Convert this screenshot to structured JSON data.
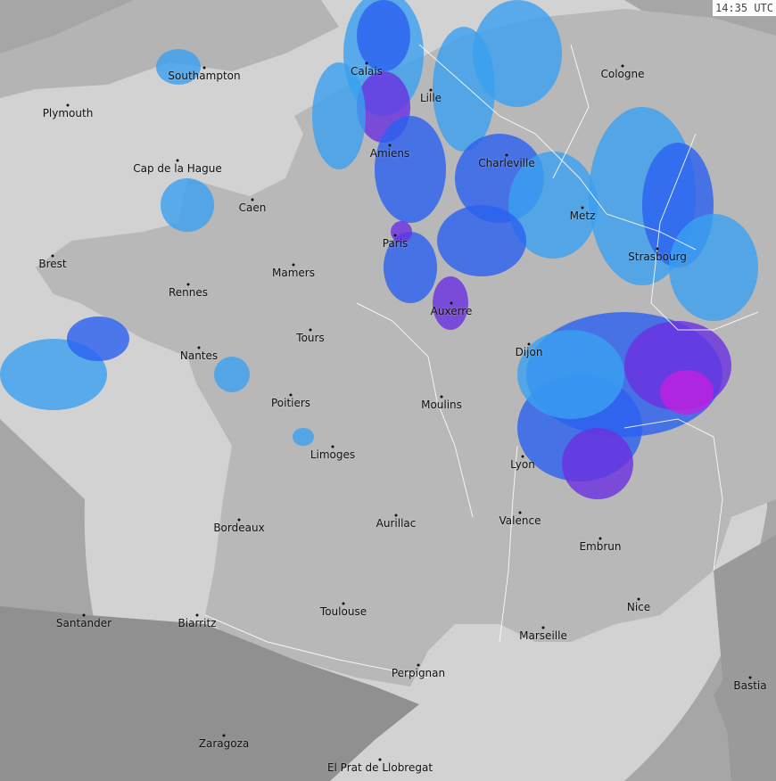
{
  "timestamp": "14:35 UTC",
  "colors": {
    "sea_in_range": "#d2d2d2",
    "land_in_range": "#b8b8b8",
    "out_of_range_land": "#8a8a8a",
    "out_of_range_sea": "#a6a6a6",
    "rain_light": "#3aa0f0",
    "rain_moderate": "#2a60f0",
    "rain_heavy": "#6a30e0",
    "rain_intense": "#c020e0",
    "borders": "#ffffff"
  },
  "cities": [
    "Calais",
    "Lille",
    "Cologne",
    "Southampton",
    "Plymouth",
    "Amiens",
    "Charleville",
    "Cap de la Hague",
    "Caen",
    "Metz",
    "Paris",
    "Strasbourg",
    "Brest",
    "Mamers",
    "Rennes",
    "Auxerre",
    "Tours",
    "Dijon",
    "Nantes",
    "Poitiers",
    "Moulins",
    "Limoges",
    "Lyon",
    "Valence",
    "Aurillac",
    "Bordeaux",
    "Embrun",
    "Nice",
    "Toulouse",
    "Santander",
    "Biarritz",
    "Marseille",
    "Perpignan",
    "Bastia",
    "Zaragoza",
    "El Prat de Llobregat"
  ]
}
